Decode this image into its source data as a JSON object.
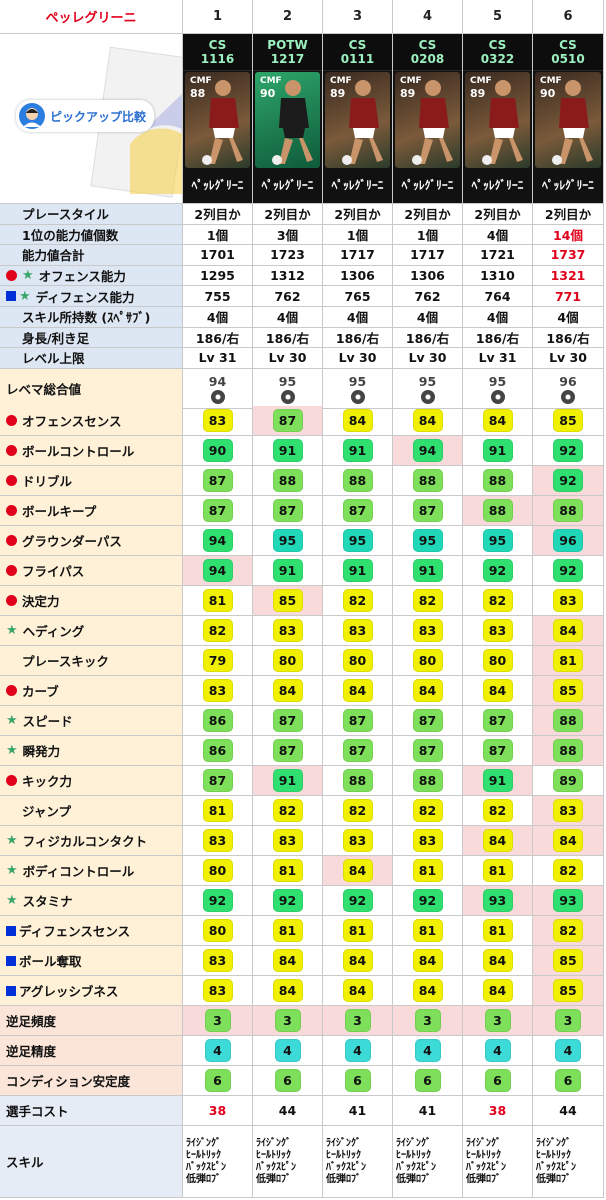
{
  "title": "ペッレグリーニ",
  "col_numbers": [
    "1",
    "2",
    "3",
    "4",
    "5",
    "6"
  ],
  "pickup_label": "ピックアップ比較",
  "cards": [
    {
      "type": "CS",
      "date": "1116",
      "pos": "CMF",
      "ovr": "88",
      "name": "ﾍﾟｯﾚｸﾞﾘｰﾆ",
      "kit": "#8b1a1a"
    },
    {
      "type": "POTW",
      "date": "1217",
      "pos": "CMF",
      "ovr": "90",
      "name": "ﾍﾟｯﾚｸﾞﾘｰﾆ",
      "kit": "#1b1b1b"
    },
    {
      "type": "CS",
      "date": "0111",
      "pos": "CMF",
      "ovr": "89",
      "name": "ﾍﾟｯﾚｸﾞﾘｰﾆ",
      "kit": "#8b1a1a"
    },
    {
      "type": "CS",
      "date": "0208",
      "pos": "CMF",
      "ovr": "89",
      "name": "ﾍﾟｯﾚｸﾞﾘｰﾆ",
      "kit": "#8b1a1a"
    },
    {
      "type": "CS",
      "date": "0322",
      "pos": "CMF",
      "ovr": "89",
      "name": "ﾍﾟｯﾚｸﾞﾘｰﾆ",
      "kit": "#8b1a1a"
    },
    {
      "type": "CS",
      "date": "0510",
      "pos": "CMF",
      "ovr": "90",
      "name": "ﾍﾟｯﾚｸﾞﾘｰﾆ",
      "kit": "#8b1a1a"
    }
  ],
  "info_rows": [
    {
      "label": "プレースタイル",
      "mark": "none",
      "values": [
        "2列目か",
        "2列目か",
        "2列目か",
        "2列目か",
        "2列目か",
        "2列目か"
      ],
      "red": []
    },
    {
      "label": "1位の能力値個数",
      "mark": "none",
      "values": [
        "1個",
        "3個",
        "1個",
        "1個",
        "4個",
        "14個"
      ],
      "red": [
        5
      ]
    },
    {
      "label": "能力値合計",
      "mark": "none",
      "values": [
        "1701",
        "1723",
        "1717",
        "1717",
        "1721",
        "1737"
      ],
      "red": [
        5
      ]
    },
    {
      "label": "オフェンス能力",
      "mark": "dot-star",
      "values": [
        "1295",
        "1312",
        "1306",
        "1306",
        "1310",
        "1321"
      ],
      "red": [
        5
      ]
    },
    {
      "label": "ディフェンス能力",
      "mark": "sq-star",
      "values": [
        "755",
        "762",
        "765",
        "762",
        "764",
        "771"
      ],
      "red": [
        5
      ]
    },
    {
      "label": "スキル所持数 (ｽﾍﾟｻﾌﾞ)",
      "mark": "none",
      "values": [
        "4個",
        "4個",
        "4個",
        "4個",
        "4個",
        "4個"
      ],
      "red": []
    },
    {
      "label": "身長/利き足",
      "mark": "none",
      "values": [
        "186/右",
        "186/右",
        "186/右",
        "186/右",
        "186/右",
        "186/右"
      ],
      "red": []
    },
    {
      "label": "レベル上限",
      "mark": "none",
      "values": [
        "Lv 31",
        "Lv 30",
        "Lv 30",
        "Lv 30",
        "Lv 31",
        "Lv 30"
      ],
      "red": []
    }
  ],
  "lvmax": {
    "label": "レベマ総合値",
    "values": [
      "94",
      "95",
      "95",
      "95",
      "95",
      "96"
    ],
    "red": [
      5
    ]
  },
  "stats": [
    {
      "label": "オフェンスセンス",
      "mark": "dot",
      "values": [
        83,
        87,
        84,
        84,
        84,
        85
      ],
      "hl": [
        1
      ]
    },
    {
      "label": "ボールコントロール",
      "mark": "dot",
      "values": [
        90,
        91,
        91,
        94,
        91,
        92
      ],
      "hl": [
        3
      ]
    },
    {
      "label": "ドリブル",
      "mark": "dot",
      "values": [
        87,
        88,
        88,
        88,
        88,
        92
      ],
      "hl": [
        5
      ]
    },
    {
      "label": "ボールキープ",
      "mark": "dot",
      "values": [
        87,
        87,
        87,
        87,
        88,
        88
      ],
      "hl": [
        4,
        5
      ]
    },
    {
      "label": "グラウンダーパス",
      "mark": "dot",
      "values": [
        94,
        95,
        95,
        95,
        95,
        96
      ],
      "hl": [
        5
      ]
    },
    {
      "label": "フライパス",
      "mark": "dot",
      "values": [
        94,
        91,
        91,
        91,
        92,
        92
      ],
      "hl": [
        0
      ]
    },
    {
      "label": "決定力",
      "mark": "dot",
      "values": [
        81,
        85,
        82,
        82,
        82,
        83
      ],
      "hl": [
        1
      ]
    },
    {
      "label": "ヘディング",
      "mark": "star",
      "values": [
        82,
        83,
        83,
        83,
        83,
        84
      ],
      "hl": [
        5
      ]
    },
    {
      "label": "プレースキック",
      "mark": "none",
      "values": [
        79,
        80,
        80,
        80,
        80,
        81
      ],
      "hl": [
        5
      ]
    },
    {
      "label": "カーブ",
      "mark": "dot",
      "values": [
        83,
        84,
        84,
        84,
        84,
        85
      ],
      "hl": [
        5
      ]
    },
    {
      "label": "スピード",
      "mark": "star",
      "values": [
        86,
        87,
        87,
        87,
        87,
        88
      ],
      "hl": [
        5
      ]
    },
    {
      "label": "瞬発力",
      "mark": "star",
      "values": [
        86,
        87,
        87,
        87,
        87,
        88
      ],
      "hl": [
        5
      ]
    },
    {
      "label": "キック力",
      "mark": "dot",
      "values": [
        87,
        91,
        88,
        88,
        91,
        89
      ],
      "hl": [
        1,
        4
      ]
    },
    {
      "label": "ジャンプ",
      "mark": "none",
      "values": [
        81,
        82,
        82,
        82,
        82,
        83
      ],
      "hl": [
        5
      ]
    },
    {
      "label": "フィジカルコンタクト",
      "mark": "star",
      "values": [
        83,
        83,
        83,
        83,
        84,
        84
      ],
      "hl": [
        4,
        5
      ]
    },
    {
      "label": "ボディコントロール",
      "mark": "star",
      "values": [
        80,
        81,
        84,
        81,
        81,
        82
      ],
      "hl": [
        2
      ]
    },
    {
      "label": "スタミナ",
      "mark": "star",
      "values": [
        92,
        92,
        92,
        92,
        93,
        93
      ],
      "hl": [
        4,
        5
      ]
    },
    {
      "label": "ディフェンスセンス",
      "mark": "sq",
      "values": [
        80,
        81,
        81,
        81,
        81,
        82
      ],
      "hl": [
        5
      ]
    },
    {
      "label": "ボール奪取",
      "mark": "sq",
      "values": [
        83,
        84,
        84,
        84,
        84,
        85
      ],
      "hl": [
        5
      ]
    },
    {
      "label": "アグレッシブネス",
      "mark": "sq",
      "values": [
        83,
        84,
        84,
        84,
        84,
        85
      ],
      "hl": [
        5
      ]
    }
  ],
  "foot_rows": [
    {
      "label": "逆足頻度",
      "values": [
        3,
        3,
        3,
        3,
        3,
        3
      ],
      "color": "lime",
      "hl": [
        0,
        1,
        2,
        3,
        4,
        5
      ]
    },
    {
      "label": "逆足精度",
      "values": [
        4,
        4,
        4,
        4,
        4,
        4
      ],
      "color": "teal",
      "hl": []
    },
    {
      "label": "コンディション安定度",
      "values": [
        6,
        6,
        6,
        6,
        6,
        6
      ],
      "color": "lime",
      "hl": []
    }
  ],
  "cost": {
    "label": "選手コスト",
    "values": [
      "38",
      "44",
      "41",
      "41",
      "38",
      "44"
    ],
    "red": [
      0,
      4
    ]
  },
  "skills": {
    "label": "スキル",
    "lines": [
      "ﾗｲｼﾞﾝｸﾞ",
      "ﾋｰﾙﾄﾘｯｸ",
      "ﾊﾞｯｸｽﾋﾟﾝ",
      "低弾ﾛﾌﾞ"
    ]
  }
}
